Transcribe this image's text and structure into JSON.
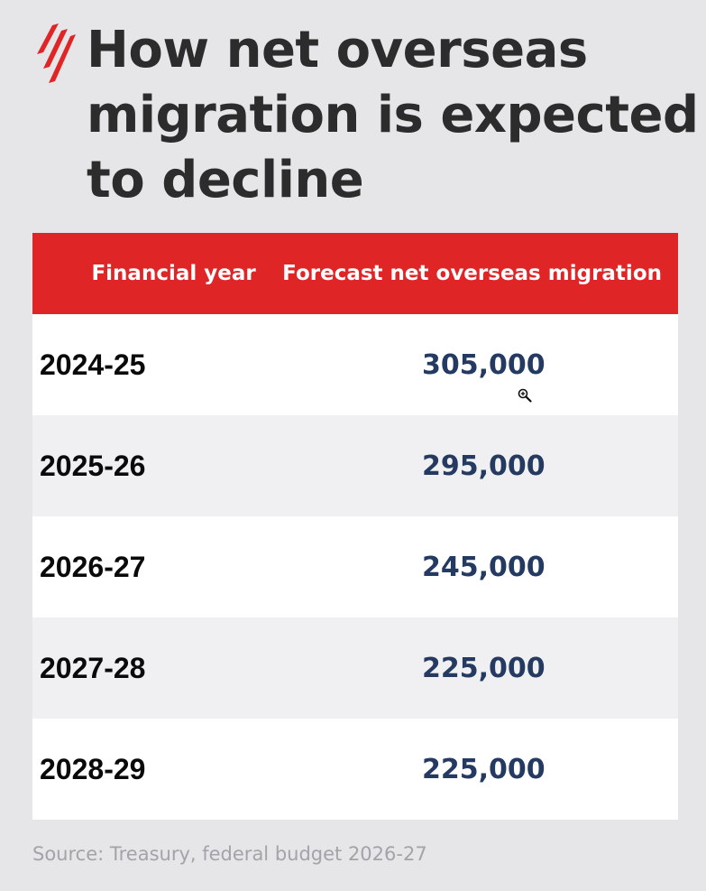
{
  "title": "How net overseas migration is expected to decline",
  "table": {
    "headers": [
      "Financial year",
      "Forecast net overseas migration"
    ],
    "rows": [
      {
        "year": "2024-25",
        "value": "305,000"
      },
      {
        "year": "2025-26",
        "value": "295,000"
      },
      {
        "year": "2026-27",
        "value": "245,000"
      },
      {
        "year": "2027-28",
        "value": "225,000"
      },
      {
        "year": "2028-29",
        "value": "225,000"
      }
    ]
  },
  "source": "Source: Treasury, federal budget 2026-27",
  "chart_data": {
    "type": "table",
    "title": "How net overseas migration is expected to decline",
    "columns": [
      "Financial year",
      "Forecast net overseas migration"
    ],
    "categories": [
      "2024-25",
      "2025-26",
      "2026-27",
      "2027-28",
      "2028-29"
    ],
    "values": [
      305000,
      295000,
      245000,
      225000,
      225000
    ]
  },
  "colors": {
    "header_bg": "#e02526",
    "value_text": "#253a60",
    "brand_red": "#e02526"
  },
  "icons": [
    "sbs-logo",
    "zoom-in-cursor-icon"
  ]
}
